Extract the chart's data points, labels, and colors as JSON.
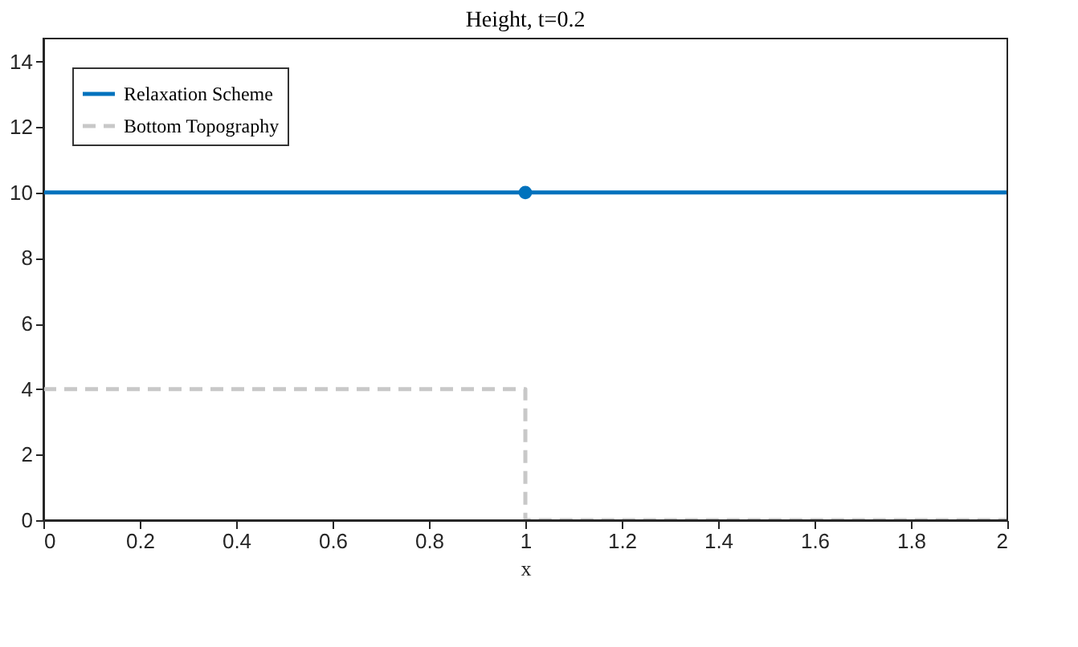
{
  "chart_data": {
    "type": "line",
    "title": "Height, t=0.2",
    "xlabel": "x",
    "series": [
      {
        "name": "Relaxation Scheme",
        "color": "#0072bd",
        "x": [
          0,
          1,
          2
        ],
        "values": [
          10,
          10,
          10
        ],
        "line_style": "solid"
      },
      {
        "name": "Bottom Topography",
        "color": "#c8c8c8",
        "x": [
          0,
          1,
          1,
          2
        ],
        "values": [
          4,
          4,
          0,
          0
        ],
        "line_style": "dashed"
      },
      {
        "type": "scatter",
        "color": "#0072bd",
        "x": [
          1
        ],
        "values": [
          10
        ],
        "marker": "circle"
      }
    ],
    "xlim": [
      0,
      2
    ],
    "xticks": [
      0,
      0.2,
      0.4,
      0.6,
      0.8,
      1,
      1.2,
      1.4,
      1.6,
      1.8,
      2
    ],
    "ylim": [
      0,
      14.7
    ],
    "yticks": [
      0,
      2,
      4,
      6,
      8,
      10,
      12,
      14
    ],
    "grid": false,
    "legend": "top left"
  }
}
